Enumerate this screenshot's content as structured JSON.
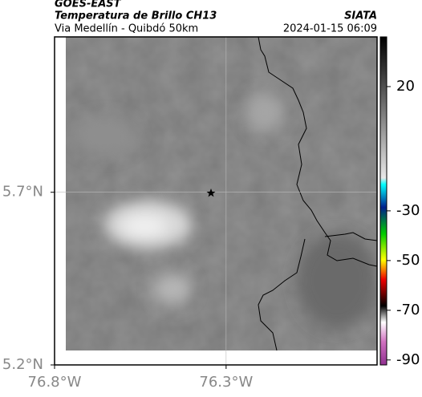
{
  "header": {
    "title": "GOES-EAST",
    "subtitle": "Temperatura de Brillo CH13",
    "region": "Via Medellín - Quibdó 50km",
    "source": "SIATA",
    "timestamp": "2024-01-15 06:09"
  },
  "map": {
    "xlim": [
      -76.8,
      -75.86
    ],
    "ylim": [
      5.2,
      6.15
    ],
    "xticks": [
      {
        "value": -76.8,
        "label": "76.8°W"
      },
      {
        "value": -76.3,
        "label": "76.3°W"
      }
    ],
    "yticks": [
      {
        "value": 5.2,
        "label": "5.2°N"
      },
      {
        "value": 5.7,
        "label": "5.7°N"
      }
    ]
  },
  "colorbar": {
    "lim": [
      40,
      -92
    ],
    "ticks": [
      20,
      -30,
      -50,
      -70,
      -90
    ]
  }
}
